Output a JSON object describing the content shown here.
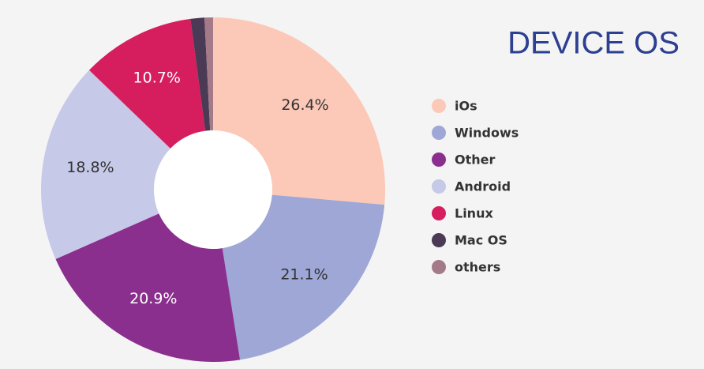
{
  "chart_data": {
    "type": "donut",
    "title": "DEVICE OS",
    "categories": [
      "iOs",
      "Windows",
      "Other",
      "Android",
      "Linux",
      "Mac OS",
      "others"
    ],
    "values": [
      26.4,
      21.1,
      20.9,
      18.8,
      10.7,
      1.3,
      0.8
    ],
    "value_labels": [
      "26.4%",
      "21.1%",
      "20.9%",
      "18.8%",
      "10.7%",
      null,
      null
    ],
    "colors": [
      "#fcc8b8",
      "#9ea7d6",
      "#8b2f8f",
      "#c6c9e7",
      "#d61d5d",
      "#4b3a55",
      "#a47a89"
    ],
    "legend": "right"
  }
}
